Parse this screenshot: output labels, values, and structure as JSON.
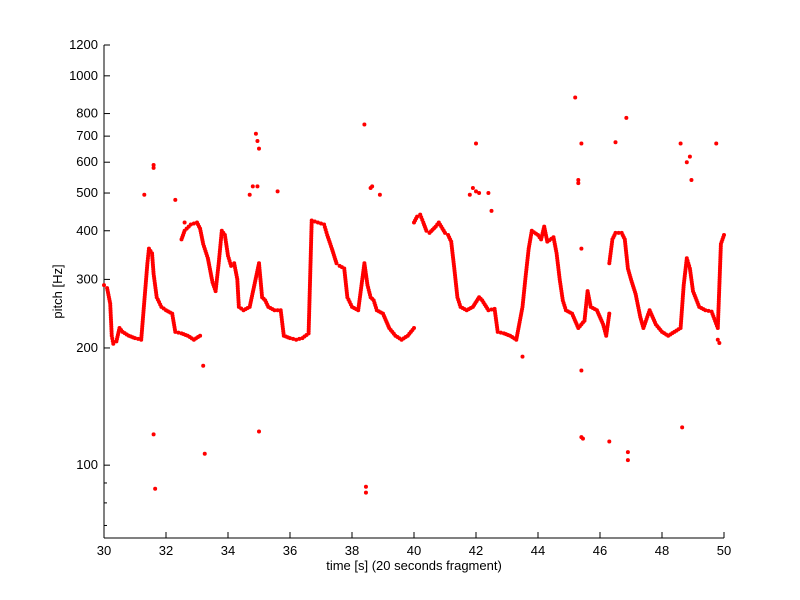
{
  "chart_data": {
    "type": "scatter",
    "xlabel": "time [s] (20 seconds fragment)",
    "ylabel": "pitch [Hz]",
    "y_scale": "log",
    "xlim": [
      30,
      50
    ],
    "ylim": [
      65,
      1200
    ],
    "x_ticks": [
      30,
      32,
      34,
      36,
      38,
      40,
      42,
      44,
      46,
      48,
      50
    ],
    "y_ticks": [
      100,
      200,
      300,
      400,
      500,
      600,
      700,
      800,
      1000,
      1200
    ],
    "grid": false,
    "marker_color": "#ff0000",
    "contour_anchors": [
      [
        30.0,
        290
      ],
      [
        30.1,
        285
      ],
      [
        30.2,
        260
      ],
      [
        30.25,
        215
      ],
      [
        30.3,
        205
      ],
      [
        30.4,
        208
      ],
      [
        30.5,
        225
      ],
      [
        30.6,
        220
      ],
      [
        30.8,
        215
      ],
      [
        31.0,
        212
      ],
      [
        31.2,
        210
      ],
      [
        31.4,
        330
      ],
      [
        31.45,
        360
      ],
      [
        31.55,
        350
      ],
      [
        31.6,
        310
      ],
      [
        31.7,
        270
      ],
      [
        31.85,
        255
      ],
      [
        32.0,
        250
      ],
      [
        32.2,
        245
      ],
      [
        32.3,
        220
      ],
      [
        32.5,
        218
      ],
      [
        32.7,
        215
      ],
      [
        32.9,
        210
      ],
      [
        33.1,
        215
      ],
      [
        32.5,
        380
      ],
      [
        32.6,
        400
      ],
      [
        32.8,
        415
      ],
      [
        33.0,
        420
      ],
      [
        33.1,
        405
      ],
      [
        33.2,
        370
      ],
      [
        33.35,
        340
      ],
      [
        33.5,
        295
      ],
      [
        33.6,
        280
      ],
      [
        33.7,
        330
      ],
      [
        33.8,
        400
      ],
      [
        33.9,
        390
      ],
      [
        34.0,
        345
      ],
      [
        34.1,
        325
      ],
      [
        34.2,
        330
      ],
      [
        34.3,
        300
      ],
      [
        34.35,
        255
      ],
      [
        34.5,
        250
      ],
      [
        34.7,
        255
      ],
      [
        35.0,
        330
      ],
      [
        35.1,
        270
      ],
      [
        35.2,
        265
      ],
      [
        35.3,
        255
      ],
      [
        35.5,
        250
      ],
      [
        35.7,
        250
      ],
      [
        35.8,
        215
      ],
      [
        36.0,
        212
      ],
      [
        36.2,
        210
      ],
      [
        36.4,
        212
      ],
      [
        36.6,
        218
      ],
      [
        36.7,
        425
      ],
      [
        36.9,
        420
      ],
      [
        37.1,
        415
      ],
      [
        37.2,
        390
      ],
      [
        37.35,
        360
      ],
      [
        37.5,
        330
      ],
      [
        37.6,
        325
      ],
      [
        37.75,
        320
      ],
      [
        37.85,
        270
      ],
      [
        38.0,
        255
      ],
      [
        38.2,
        250
      ],
      [
        38.4,
        330
      ],
      [
        38.5,
        290
      ],
      [
        38.6,
        270
      ],
      [
        38.7,
        265
      ],
      [
        38.8,
        250
      ],
      [
        39.0,
        245
      ],
      [
        39.2,
        225
      ],
      [
        39.4,
        215
      ],
      [
        39.6,
        210
      ],
      [
        39.8,
        215
      ],
      [
        40.0,
        225
      ],
      [
        40.0,
        420
      ],
      [
        40.1,
        435
      ],
      [
        40.2,
        440
      ],
      [
        40.3,
        420
      ],
      [
        40.4,
        400
      ],
      [
        40.5,
        395
      ],
      [
        40.7,
        410
      ],
      [
        40.8,
        420
      ],
      [
        41.0,
        395
      ],
      [
        41.1,
        390
      ],
      [
        41.2,
        375
      ],
      [
        41.3,
        320
      ],
      [
        41.4,
        270
      ],
      [
        41.5,
        255
      ],
      [
        41.7,
        250
      ],
      [
        41.9,
        255
      ],
      [
        42.1,
        270
      ],
      [
        42.2,
        265
      ],
      [
        42.4,
        250
      ],
      [
        42.6,
        252
      ],
      [
        42.7,
        220
      ],
      [
        42.9,
        218
      ],
      [
        43.1,
        215
      ],
      [
        43.3,
        210
      ],
      [
        43.5,
        255
      ],
      [
        43.6,
        305
      ],
      [
        43.7,
        360
      ],
      [
        43.8,
        400
      ],
      [
        44.0,
        390
      ],
      [
        44.1,
        380
      ],
      [
        44.2,
        410
      ],
      [
        44.3,
        375
      ],
      [
        44.5,
        385
      ],
      [
        44.6,
        350
      ],
      [
        44.7,
        300
      ],
      [
        44.8,
        265
      ],
      [
        44.9,
        250
      ],
      [
        45.1,
        245
      ],
      [
        45.3,
        225
      ],
      [
        45.5,
        235
      ],
      [
        45.6,
        280
      ],
      [
        45.7,
        255
      ],
      [
        45.9,
        250
      ],
      [
        46.1,
        230
      ],
      [
        46.2,
        215
      ],
      [
        46.3,
        245
      ],
      [
        46.3,
        330
      ],
      [
        46.4,
        380
      ],
      [
        46.5,
        395
      ],
      [
        46.7,
        395
      ],
      [
        46.8,
        380
      ],
      [
        46.9,
        320
      ],
      [
        47.0,
        300
      ],
      [
        47.15,
        275
      ],
      [
        47.3,
        240
      ],
      [
        47.4,
        225
      ],
      [
        47.6,
        250
      ],
      [
        47.8,
        230
      ],
      [
        48.0,
        220
      ],
      [
        48.2,
        215
      ],
      [
        48.4,
        220
      ],
      [
        48.6,
        225
      ],
      [
        48.7,
        290
      ],
      [
        48.8,
        340
      ],
      [
        48.9,
        320
      ],
      [
        49.0,
        280
      ],
      [
        49.2,
        255
      ],
      [
        49.4,
        250
      ],
      [
        49.6,
        248
      ],
      [
        49.8,
        225
      ],
      [
        49.9,
        370
      ],
      [
        50.0,
        390
      ]
    ],
    "outliers": [
      [
        31.3,
        495
      ],
      [
        31.6,
        580
      ],
      [
        31.6,
        590
      ],
      [
        31.6,
        120
      ],
      [
        31.65,
        87
      ],
      [
        32.3,
        480
      ],
      [
        32.6,
        420
      ],
      [
        33.2,
        180
      ],
      [
        33.25,
        107
      ],
      [
        34.7,
        495
      ],
      [
        34.8,
        520
      ],
      [
        34.9,
        710
      ],
      [
        34.95,
        680
      ],
      [
        35.0,
        650
      ],
      [
        34.95,
        520
      ],
      [
        35.0,
        122
      ],
      [
        35.6,
        505
      ],
      [
        38.4,
        750
      ],
      [
        38.45,
        88
      ],
      [
        38.45,
        85
      ],
      [
        38.6,
        515
      ],
      [
        38.65,
        520
      ],
      [
        38.9,
        495
      ],
      [
        42.0,
        670
      ],
      [
        41.8,
        495
      ],
      [
        41.9,
        515
      ],
      [
        42.0,
        505
      ],
      [
        42.1,
        500
      ],
      [
        42.4,
        500
      ],
      [
        42.5,
        450
      ],
      [
        43.5,
        190
      ],
      [
        45.2,
        880
      ],
      [
        45.3,
        540
      ],
      [
        45.3,
        530
      ],
      [
        45.4,
        670
      ],
      [
        45.4,
        360
      ],
      [
        45.4,
        175
      ],
      [
        45.4,
        118
      ],
      [
        45.45,
        117
      ],
      [
        46.3,
        115
      ],
      [
        46.5,
        675
      ],
      [
        46.85,
        780
      ],
      [
        46.9,
        108
      ],
      [
        46.9,
        103
      ],
      [
        48.6,
        670
      ],
      [
        48.65,
        125
      ],
      [
        48.8,
        600
      ],
      [
        48.9,
        620
      ],
      [
        48.95,
        540
      ],
      [
        49.75,
        670
      ],
      [
        49.8,
        210
      ],
      [
        49.85,
        206
      ]
    ]
  }
}
